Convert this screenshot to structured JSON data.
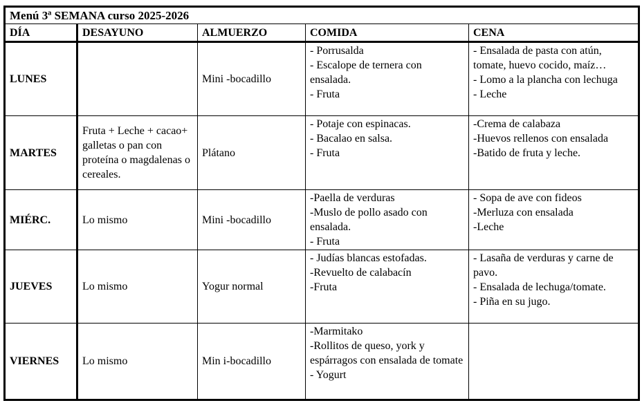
{
  "title": "Menú 3ª SEMANA curso 2025-2026",
  "headers": [
    "DÍA",
    "DESAYUNO",
    "ALMUERZO",
    "COMIDA",
    "CENA"
  ],
  "rows": [
    {
      "day": "LUNES",
      "desayuno": [],
      "almuerzo": [
        "Mini -bocadillo"
      ],
      "comida": [
        "- Porrusalda",
        "- Escalope de ternera con ensalada.",
        "- Fruta"
      ],
      "cena": [
        "- Ensalada de pasta con atún, tomate, huevo cocido, maíz…",
        "- Lomo a la plancha con lechuga",
        "- Leche"
      ]
    },
    {
      "day": "MARTES",
      "desayuno": [
        "Fruta + Leche + cacao+ galletas o pan con proteína o magdalenas o cereales."
      ],
      "almuerzo": [
        "Plátano"
      ],
      "comida": [
        "- Potaje con espinacas.",
        "- Bacalao en salsa.",
        "- Fruta"
      ],
      "cena": [
        "-Crema de calabaza",
        "-Huevos rellenos con ensalada",
        "-Batido de fruta y leche."
      ]
    },
    {
      "day": "MIÉRC.",
      "desayuno": [
        "Lo mismo"
      ],
      "almuerzo": [
        "Mini -bocadillo"
      ],
      "comida": [
        "-Paella de verduras",
        "-Muslo de pollo asado con ensalada.",
        "- Fruta"
      ],
      "cena": [
        "- Sopa de ave con fideos",
        "-Merluza con ensalada",
        "-Leche"
      ]
    },
    {
      "day": "JUEVES",
      "desayuno": [
        "Lo mismo"
      ],
      "almuerzo": [
        "Yogur normal"
      ],
      "comida": [
        "- Judías blancas estofadas.",
        "-Revuelto de calabacín",
        "-Fruta"
      ],
      "cena": [
        "- Lasaña de verduras y carne de pavo.",
        "- Ensalada de lechuga/tomate.",
        "- Piña en su jugo."
      ]
    },
    {
      "day": "VIERNES",
      "desayuno": [
        "Lo mismo"
      ],
      "almuerzo": [
        "Min i-bocadillo"
      ],
      "comida": [
        "-Marmitako",
        "-Rollitos de queso, york y espárragos con ensalada de tomate",
        "- Yogurt"
      ],
      "cena": []
    }
  ]
}
